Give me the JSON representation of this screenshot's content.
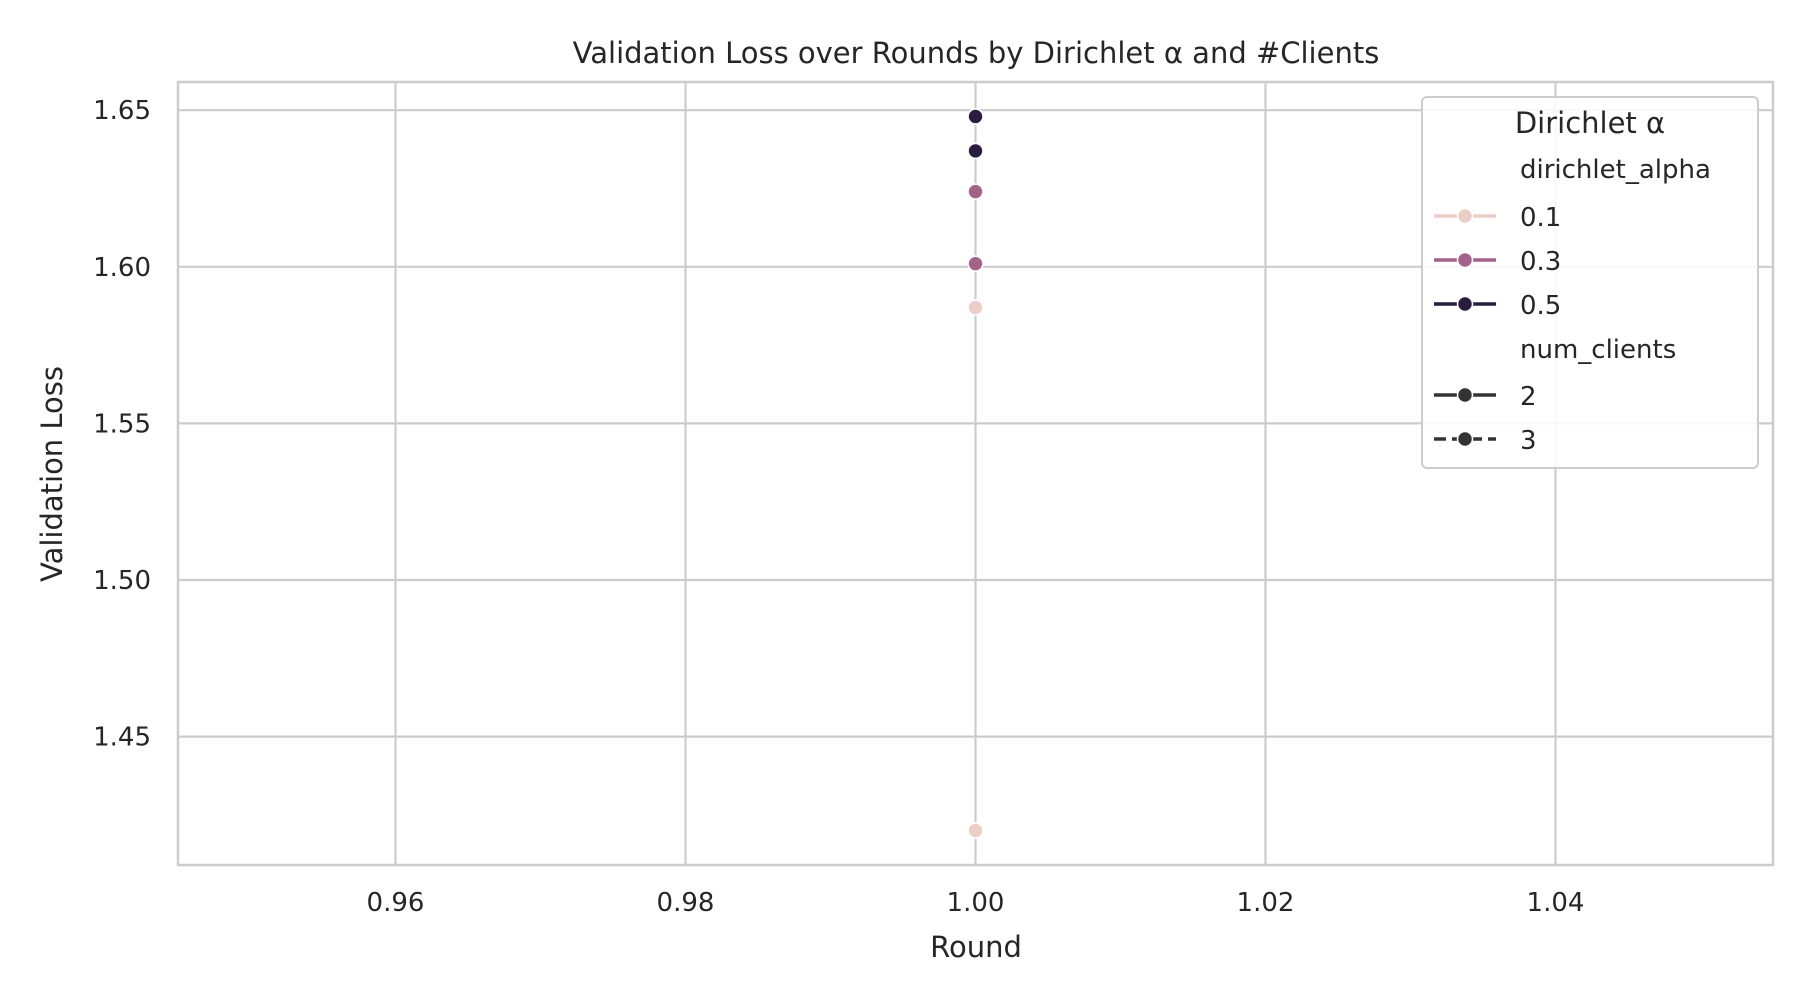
{
  "chart_data": {
    "type": "line",
    "title": "Validation Loss over Rounds by Dirichlet α and #Clients",
    "xlabel": "Round",
    "ylabel": "Validation Loss",
    "xlim": [
      0.945,
      1.055
    ],
    "ylim": [
      1.409,
      1.659
    ],
    "xticks": [
      0.96,
      0.98,
      1.0,
      1.02,
      1.04
    ],
    "xtick_labels": [
      "0.96",
      "0.98",
      "1.00",
      "1.02",
      "1.04"
    ],
    "yticks": [
      1.45,
      1.5,
      1.55,
      1.6,
      1.65
    ],
    "ytick_labels": [
      "1.45",
      "1.50",
      "1.55",
      "1.60",
      "1.65"
    ],
    "grid": true,
    "legend": {
      "placement": "top-right",
      "title": "Dirichlet α",
      "hue_title": "dirichlet_alpha",
      "hue_entries": [
        {
          "label": "0.1",
          "color": "#ebcfc6"
        },
        {
          "label": "0.3",
          "color": "#a3628a"
        },
        {
          "label": "0.5",
          "color": "#2a1c3f"
        }
      ],
      "style_title": "num_clients",
      "style_entries": [
        {
          "label": "2",
          "dash": "solid",
          "color": "#333333"
        },
        {
          "label": "3",
          "dash": "dashed",
          "color": "#333333"
        }
      ]
    },
    "series": [
      {
        "dirichlet_alpha": "0.1",
        "num_clients": "2",
        "color": "#ebcfc6",
        "x": [
          1.0
        ],
        "y": [
          1.587
        ]
      },
      {
        "dirichlet_alpha": "0.1",
        "num_clients": "3",
        "color": "#ebcfc6",
        "x": [
          1.0
        ],
        "y": [
          1.42
        ]
      },
      {
        "dirichlet_alpha": "0.3",
        "num_clients": "2",
        "color": "#a3628a",
        "x": [
          1.0
        ],
        "y": [
          1.624
        ]
      },
      {
        "dirichlet_alpha": "0.3",
        "num_clients": "3",
        "color": "#a3628a",
        "x": [
          1.0
        ],
        "y": [
          1.601
        ]
      },
      {
        "dirichlet_alpha": "0.5",
        "num_clients": "2",
        "color": "#2a1c3f",
        "x": [
          1.0
        ],
        "y": [
          1.648
        ]
      },
      {
        "dirichlet_alpha": "0.5",
        "num_clients": "3",
        "color": "#2a1c3f",
        "x": [
          1.0
        ],
        "y": [
          1.637
        ]
      }
    ]
  }
}
